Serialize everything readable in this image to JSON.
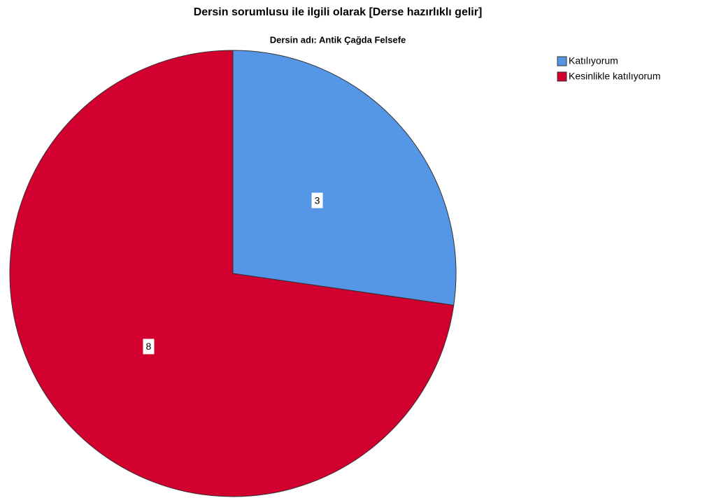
{
  "chart_data": {
    "type": "pie",
    "title": "Dersin sorumlusu ile ilgili olarak  [Derse hazırlıklı gelir]",
    "subtitle": "Dersin adı: Antik Çağda Felsefe",
    "categories": [
      "Katılıyorum",
      "Kesinlikle katılıyorum"
    ],
    "values": [
      3,
      8
    ],
    "colors": [
      "#5596e6",
      "#d1002f"
    ],
    "legend": "top-right"
  }
}
